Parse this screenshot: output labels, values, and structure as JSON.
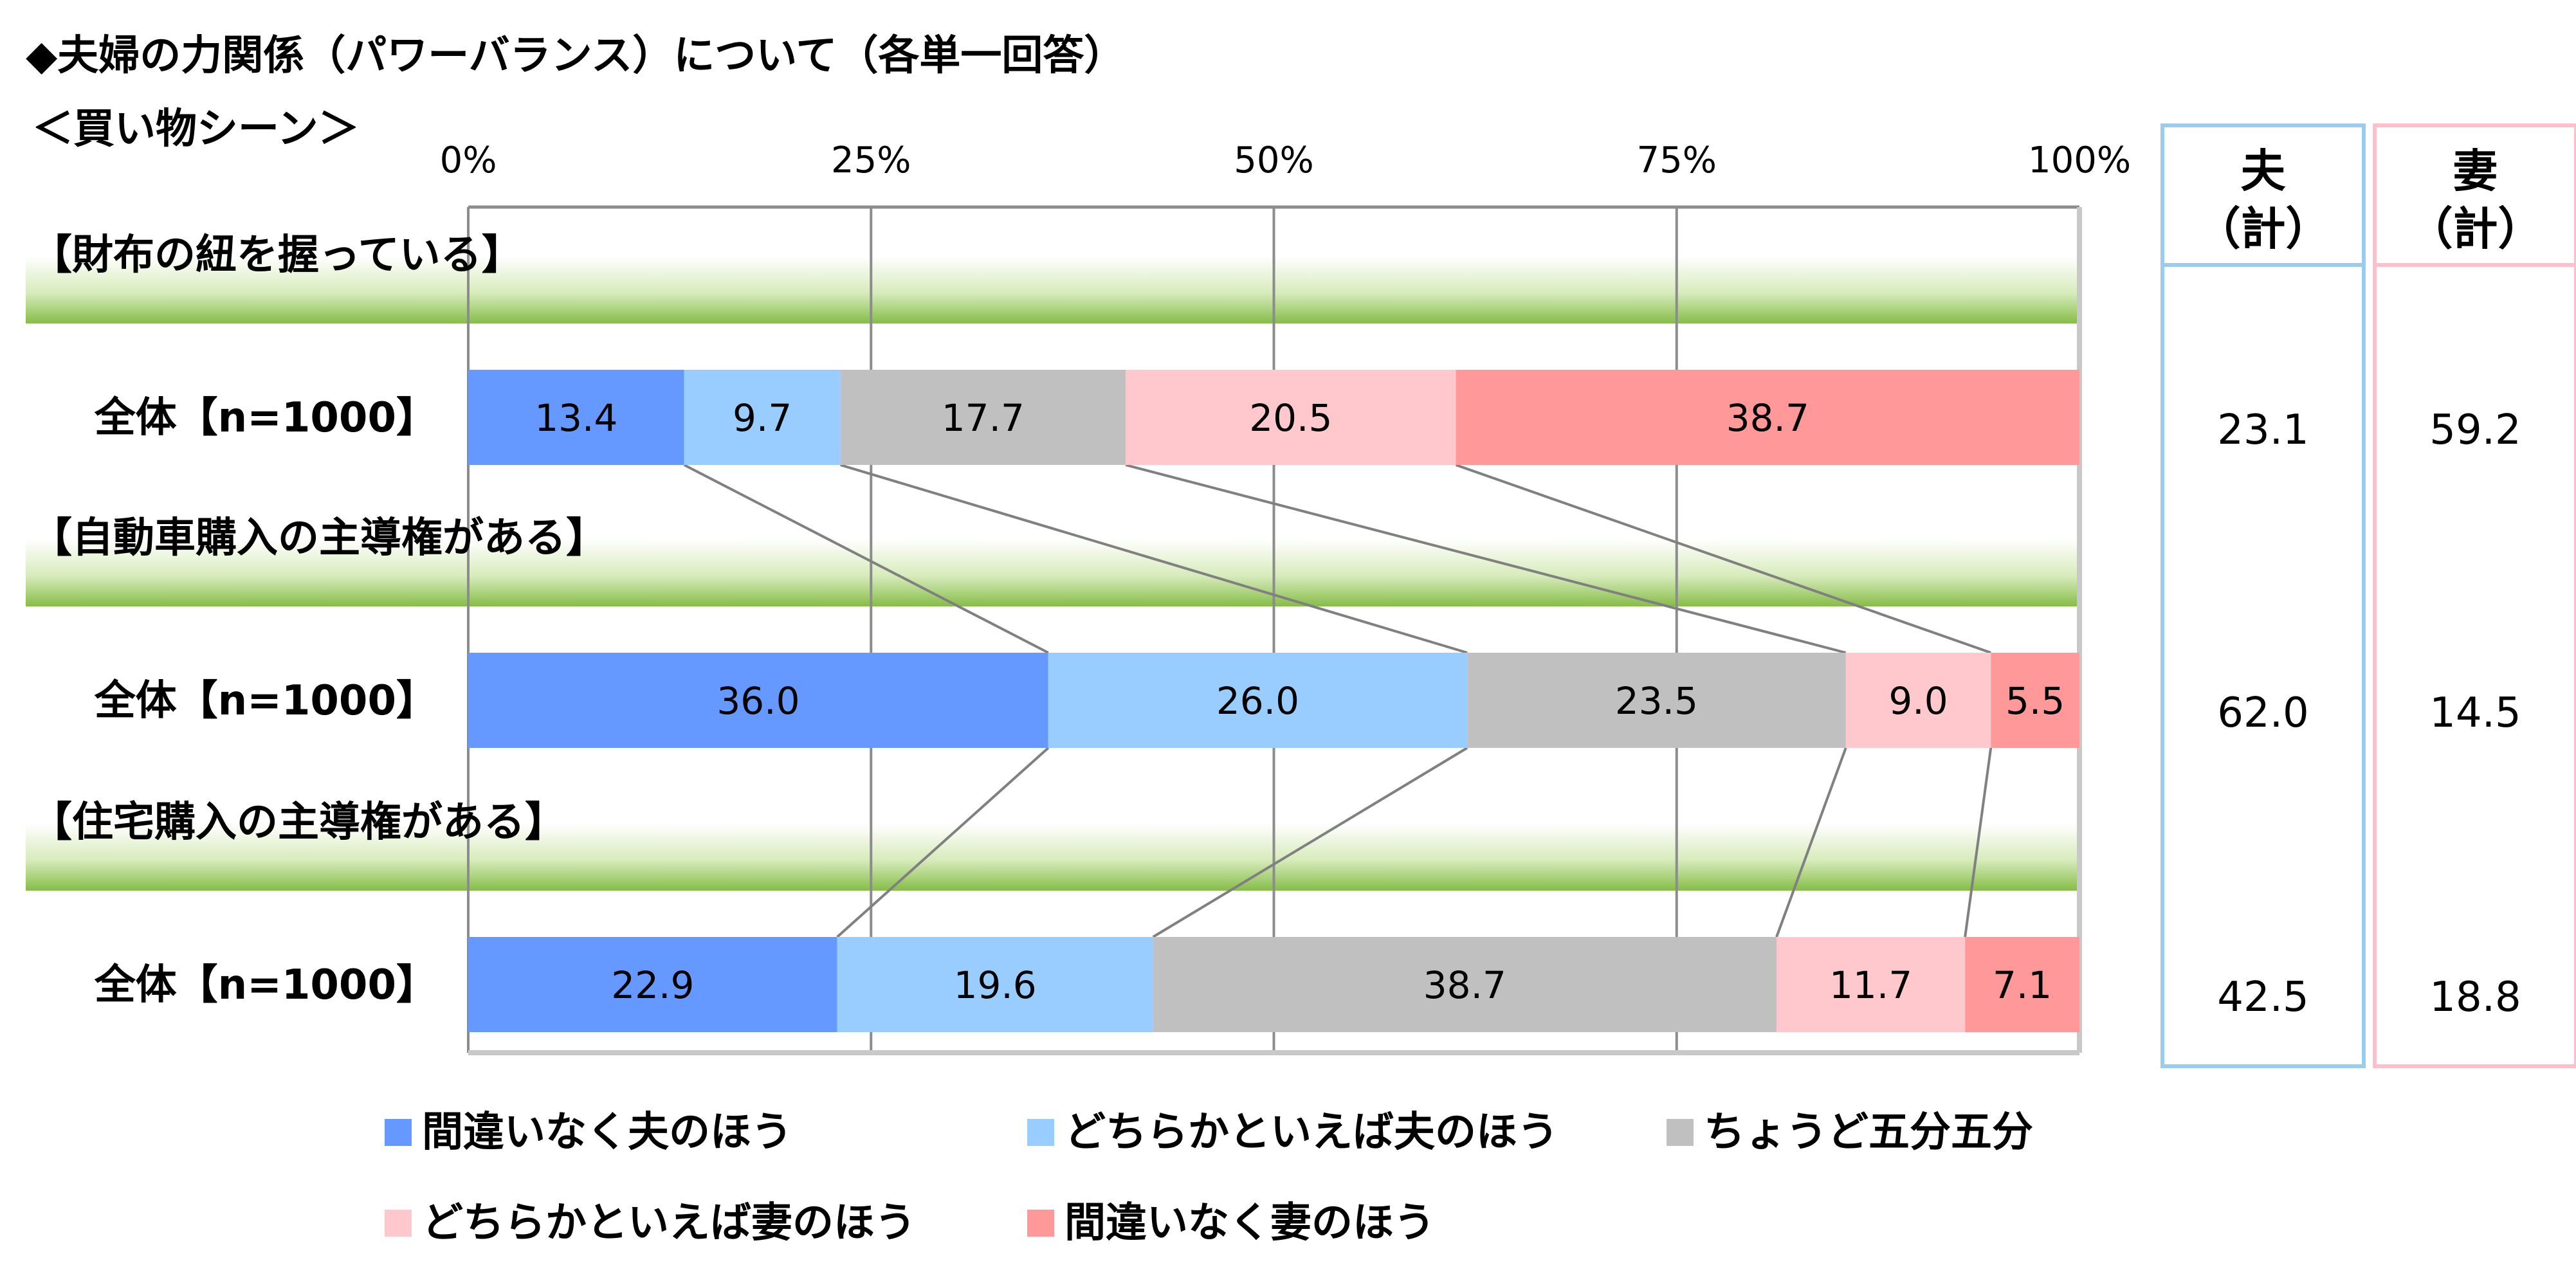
{
  "title_line1": "◆夫婦の力関係（パワーバランス）について（各単一回答）",
  "title_line2": "＜買い物シーン＞",
  "chart_data": {
    "type": "bar",
    "orientation": "horizontal-stacked-100",
    "xlim": [
      0,
      100
    ],
    "x_ticks": [
      "0%",
      "25%",
      "50%",
      "75%",
      "100%"
    ],
    "grid": true,
    "legend_placement": "bottom",
    "series": [
      {
        "name": "間違いなく夫のほう",
        "color": "#6699ff"
      },
      {
        "name": "どちらかといえば夫のほう",
        "color": "#99ccff"
      },
      {
        "name": "ちょうど五分五分",
        "color": "#c0c0c0"
      },
      {
        "name": "どちらかといえば妻のほう",
        "color": "#ffc8cc"
      },
      {
        "name": "間違いなく妻のほう",
        "color": "#ff9999"
      }
    ],
    "groups": [
      {
        "section": "【財布の紐を握っている】",
        "row_label": "全体【n=1000】",
        "values": [
          13.4,
          9.7,
          17.7,
          20.5,
          38.7
        ],
        "husband_total": "23.1",
        "wife_total": "59.2"
      },
      {
        "section": "【自動車購入の主導権がある】",
        "row_label": "全体【n=1000】",
        "values": [
          36.0,
          26.0,
          23.5,
          9.0,
          5.5
        ],
        "husband_total": "62.0",
        "wife_total": "14.5"
      },
      {
        "section": "【住宅購入の主導権がある】",
        "row_label": "全体【n=1000】",
        "values": [
          22.9,
          19.6,
          38.7,
          11.7,
          7.1
        ],
        "husband_total": "42.5",
        "wife_total": "18.8"
      }
    ],
    "husband_header": [
      "夫",
      "（計）"
    ],
    "wife_header": [
      "妻",
      "（計）"
    ],
    "husband_color": "#99ccee",
    "wife_color": "#ffc0cc",
    "section_band_color": "#8fc04f"
  }
}
